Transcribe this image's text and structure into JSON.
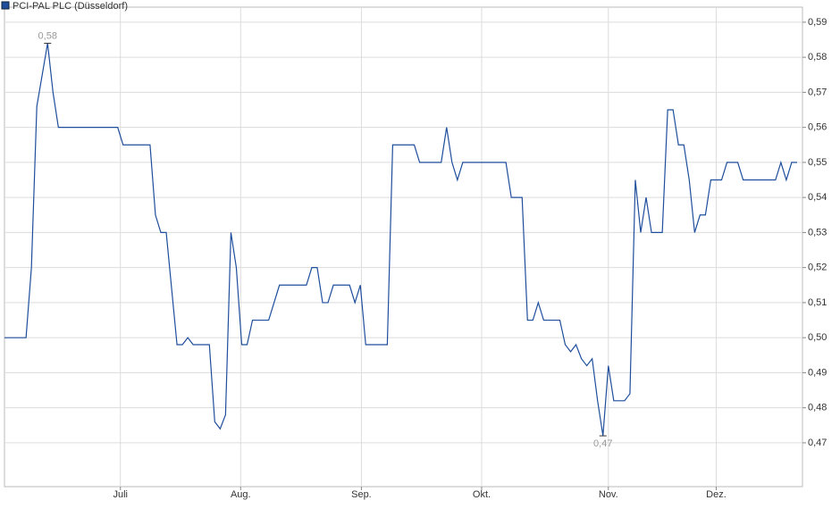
{
  "chart_data": {
    "type": "line",
    "series": [
      {
        "name": "PCI-PAL PLC (Düsseldorf)",
        "color": "#1f4e9c",
        "x": [
          0,
          4,
          5,
          6,
          8,
          9,
          10,
          21,
          22,
          27,
          28,
          29,
          30,
          32,
          33,
          34,
          35,
          38,
          39,
          40,
          41,
          42,
          43,
          44,
          45,
          46,
          49,
          51,
          56,
          57,
          58,
          59,
          60,
          61,
          64,
          65,
          66,
          67,
          71,
          72,
          76,
          77,
          81,
          82,
          83,
          84,
          85,
          93,
          94,
          96,
          97,
          98,
          99,
          100,
          103,
          104,
          105,
          106,
          107,
          108,
          109,
          110,
          111,
          112,
          113,
          115,
          116,
          117,
          118,
          119,
          120,
          122,
          123,
          124,
          125,
          126,
          127,
          128,
          129,
          130,
          131,
          133,
          134,
          136,
          137,
          143,
          144,
          145,
          146,
          147
        ],
        "values": [
          0.5,
          0.5,
          0.52,
          0.566,
          0.584,
          0.57,
          0.56,
          0.56,
          0.555,
          0.555,
          0.535,
          0.53,
          0.53,
          0.498,
          0.498,
          0.5,
          0.498,
          0.498,
          0.476,
          0.474,
          0.478,
          0.53,
          0.52,
          0.498,
          0.498,
          0.505,
          0.505,
          0.515,
          0.515,
          0.52,
          0.52,
          0.51,
          0.51,
          0.515,
          0.515,
          0.51,
          0.515,
          0.498,
          0.498,
          0.555,
          0.555,
          0.55,
          0.55,
          0.56,
          0.55,
          0.545,
          0.55,
          0.55,
          0.54,
          0.54,
          0.505,
          0.505,
          0.51,
          0.505,
          0.505,
          0.498,
          0.496,
          0.498,
          0.494,
          0.492,
          0.494,
          0.482,
          0.472,
          0.492,
          0.482,
          0.482,
          0.484,
          0.545,
          0.53,
          0.54,
          0.53,
          0.53,
          0.565,
          0.565,
          0.555,
          0.555,
          0.545,
          0.53,
          0.535,
          0.535,
          0.545,
          0.545,
          0.55,
          0.55,
          0.545,
          0.545,
          0.55,
          0.545,
          0.55,
          0.55
        ]
      }
    ],
    "annotations": [
      {
        "x": 8,
        "y": 0.584,
        "label": "0,58"
      },
      {
        "x": 111,
        "y": 0.472,
        "label": "0,47"
      }
    ],
    "xlim": [
      0,
      148
    ],
    "xticks": [
      {
        "value": 21.5,
        "label": "Juli"
      },
      {
        "value": 43.8,
        "label": "Aug."
      },
      {
        "value": 66.2,
        "label": "Sep."
      },
      {
        "value": 88.5,
        "label": "Okt."
      },
      {
        "value": 112,
        "label": "Nov."
      },
      {
        "value": 132,
        "label": "Dez."
      }
    ],
    "ylim": [
      0.4575,
      0.5943
    ],
    "yticks": [
      {
        "value": 0.47,
        "label": "0,47"
      },
      {
        "value": 0.48,
        "label": "0,48"
      },
      {
        "value": 0.49,
        "label": "0,49"
      },
      {
        "value": 0.5,
        "label": "0,50"
      },
      {
        "value": 0.51,
        "label": "0,51"
      },
      {
        "value": 0.52,
        "label": "0,52"
      },
      {
        "value": 0.53,
        "label": "0,53"
      },
      {
        "value": 0.54,
        "label": "0,54"
      },
      {
        "value": 0.55,
        "label": "0,55"
      },
      {
        "value": 0.56,
        "label": "0,56"
      },
      {
        "value": 0.57,
        "label": "0,57"
      },
      {
        "value": 0.58,
        "label": "0,58"
      },
      {
        "value": 0.59,
        "label": "0,59"
      }
    ],
    "grid": true
  }
}
